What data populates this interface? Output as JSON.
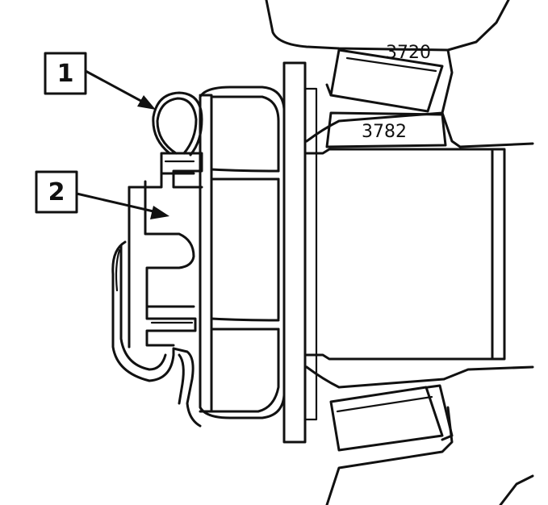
{
  "callouts": [
    {
      "number": "1"
    },
    {
      "number": "2"
    }
  ],
  "part_labels": {
    "upper": "3720",
    "middle": "3782"
  }
}
